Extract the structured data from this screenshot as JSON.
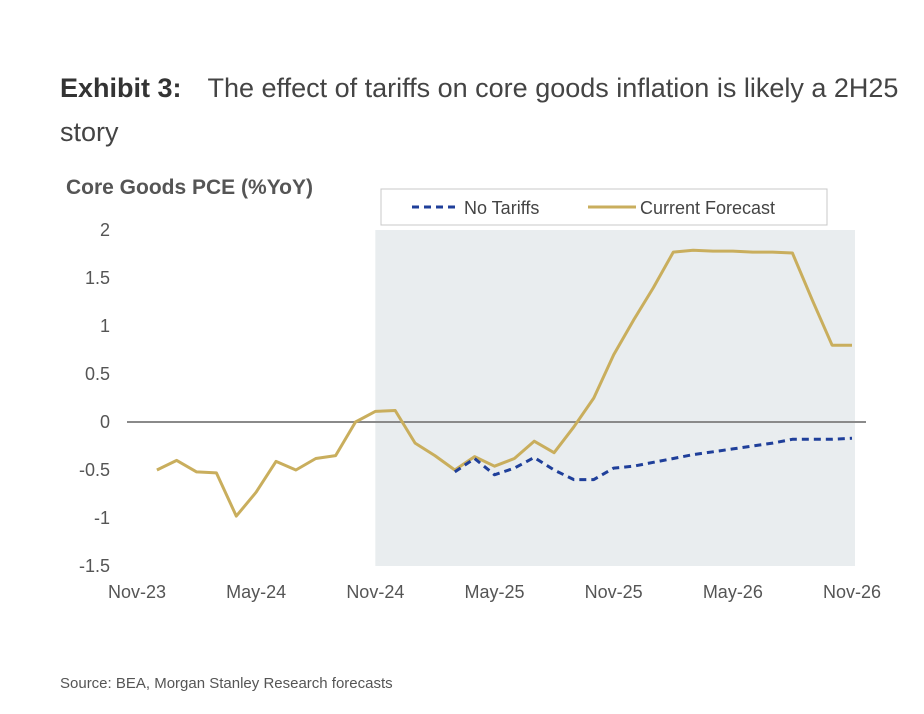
{
  "exhibit": {
    "label": "Exhibit 3:",
    "title": "The effect of tariffs on core goods inflation is likely a 2H25 story"
  },
  "source": "Source: BEA, Morgan Stanley Research forecasts",
  "colors": {
    "no_tariffs": "#1f3f9a",
    "current_forecast": "#c9ae5d",
    "shade": "#e9edef",
    "zero_line": "#8a8a8a"
  },
  "chart_data": {
    "type": "line",
    "title": "Core Goods PCE (%YoY)",
    "xlabel": "",
    "ylabel": "",
    "ylim": [
      -1.5,
      2
    ],
    "yticks": [
      "2",
      "1.5",
      "1",
      "0.5",
      "0",
      "-0.5",
      "-1",
      "-1.5"
    ],
    "ytick_values": [
      2,
      1.5,
      1,
      0.5,
      0,
      -0.5,
      -1,
      -1.5
    ],
    "xtick_labels": [
      "Nov-23",
      "May-24",
      "Nov-24",
      "May-25",
      "Nov-25",
      "May-26",
      "Nov-26"
    ],
    "xtick_months": [
      0,
      6,
      12,
      18,
      24,
      30,
      36
    ],
    "x_range_months": [
      0,
      36
    ],
    "shaded_region_months": [
      12,
      36
    ],
    "legend": {
      "position": "top-right",
      "entries": [
        "No Tariffs",
        "Current Forecast"
      ]
    },
    "series": [
      {
        "name": "Current Forecast",
        "style": "solid",
        "x": [
          1,
          2,
          3,
          4,
          5,
          6,
          7,
          8,
          9,
          10,
          11,
          12,
          13,
          14,
          15,
          16,
          17,
          18,
          19,
          20,
          21,
          22,
          23,
          24,
          25,
          26,
          27,
          28,
          29,
          30,
          31,
          32,
          33,
          34,
          35,
          36
        ],
        "values": [
          -0.5,
          -0.4,
          -0.52,
          -0.53,
          -0.98,
          -0.73,
          -0.41,
          -0.5,
          -0.38,
          -0.35,
          0.0,
          0.11,
          0.12,
          -0.22,
          -0.35,
          -0.5,
          -0.36,
          -0.46,
          -0.38,
          -0.2,
          -0.32,
          -0.05,
          0.25,
          0.7,
          1.06,
          1.4,
          1.77,
          1.79,
          1.78,
          1.78,
          1.77,
          1.77,
          1.76,
          1.27,
          0.8,
          0.8
        ]
      },
      {
        "name": "No Tariffs",
        "style": "dashed",
        "x": [
          16,
          17,
          18,
          19,
          20,
          21,
          22,
          23,
          24,
          25,
          26,
          27,
          28,
          29,
          30,
          31,
          32,
          33,
          34,
          35,
          36
        ],
        "values": [
          -0.52,
          -0.38,
          -0.55,
          -0.48,
          -0.37,
          -0.5,
          -0.6,
          -0.6,
          -0.48,
          -0.46,
          -0.42,
          -0.38,
          -0.34,
          -0.31,
          -0.28,
          -0.25,
          -0.22,
          -0.18,
          -0.18,
          -0.18,
          -0.17
        ]
      }
    ]
  }
}
